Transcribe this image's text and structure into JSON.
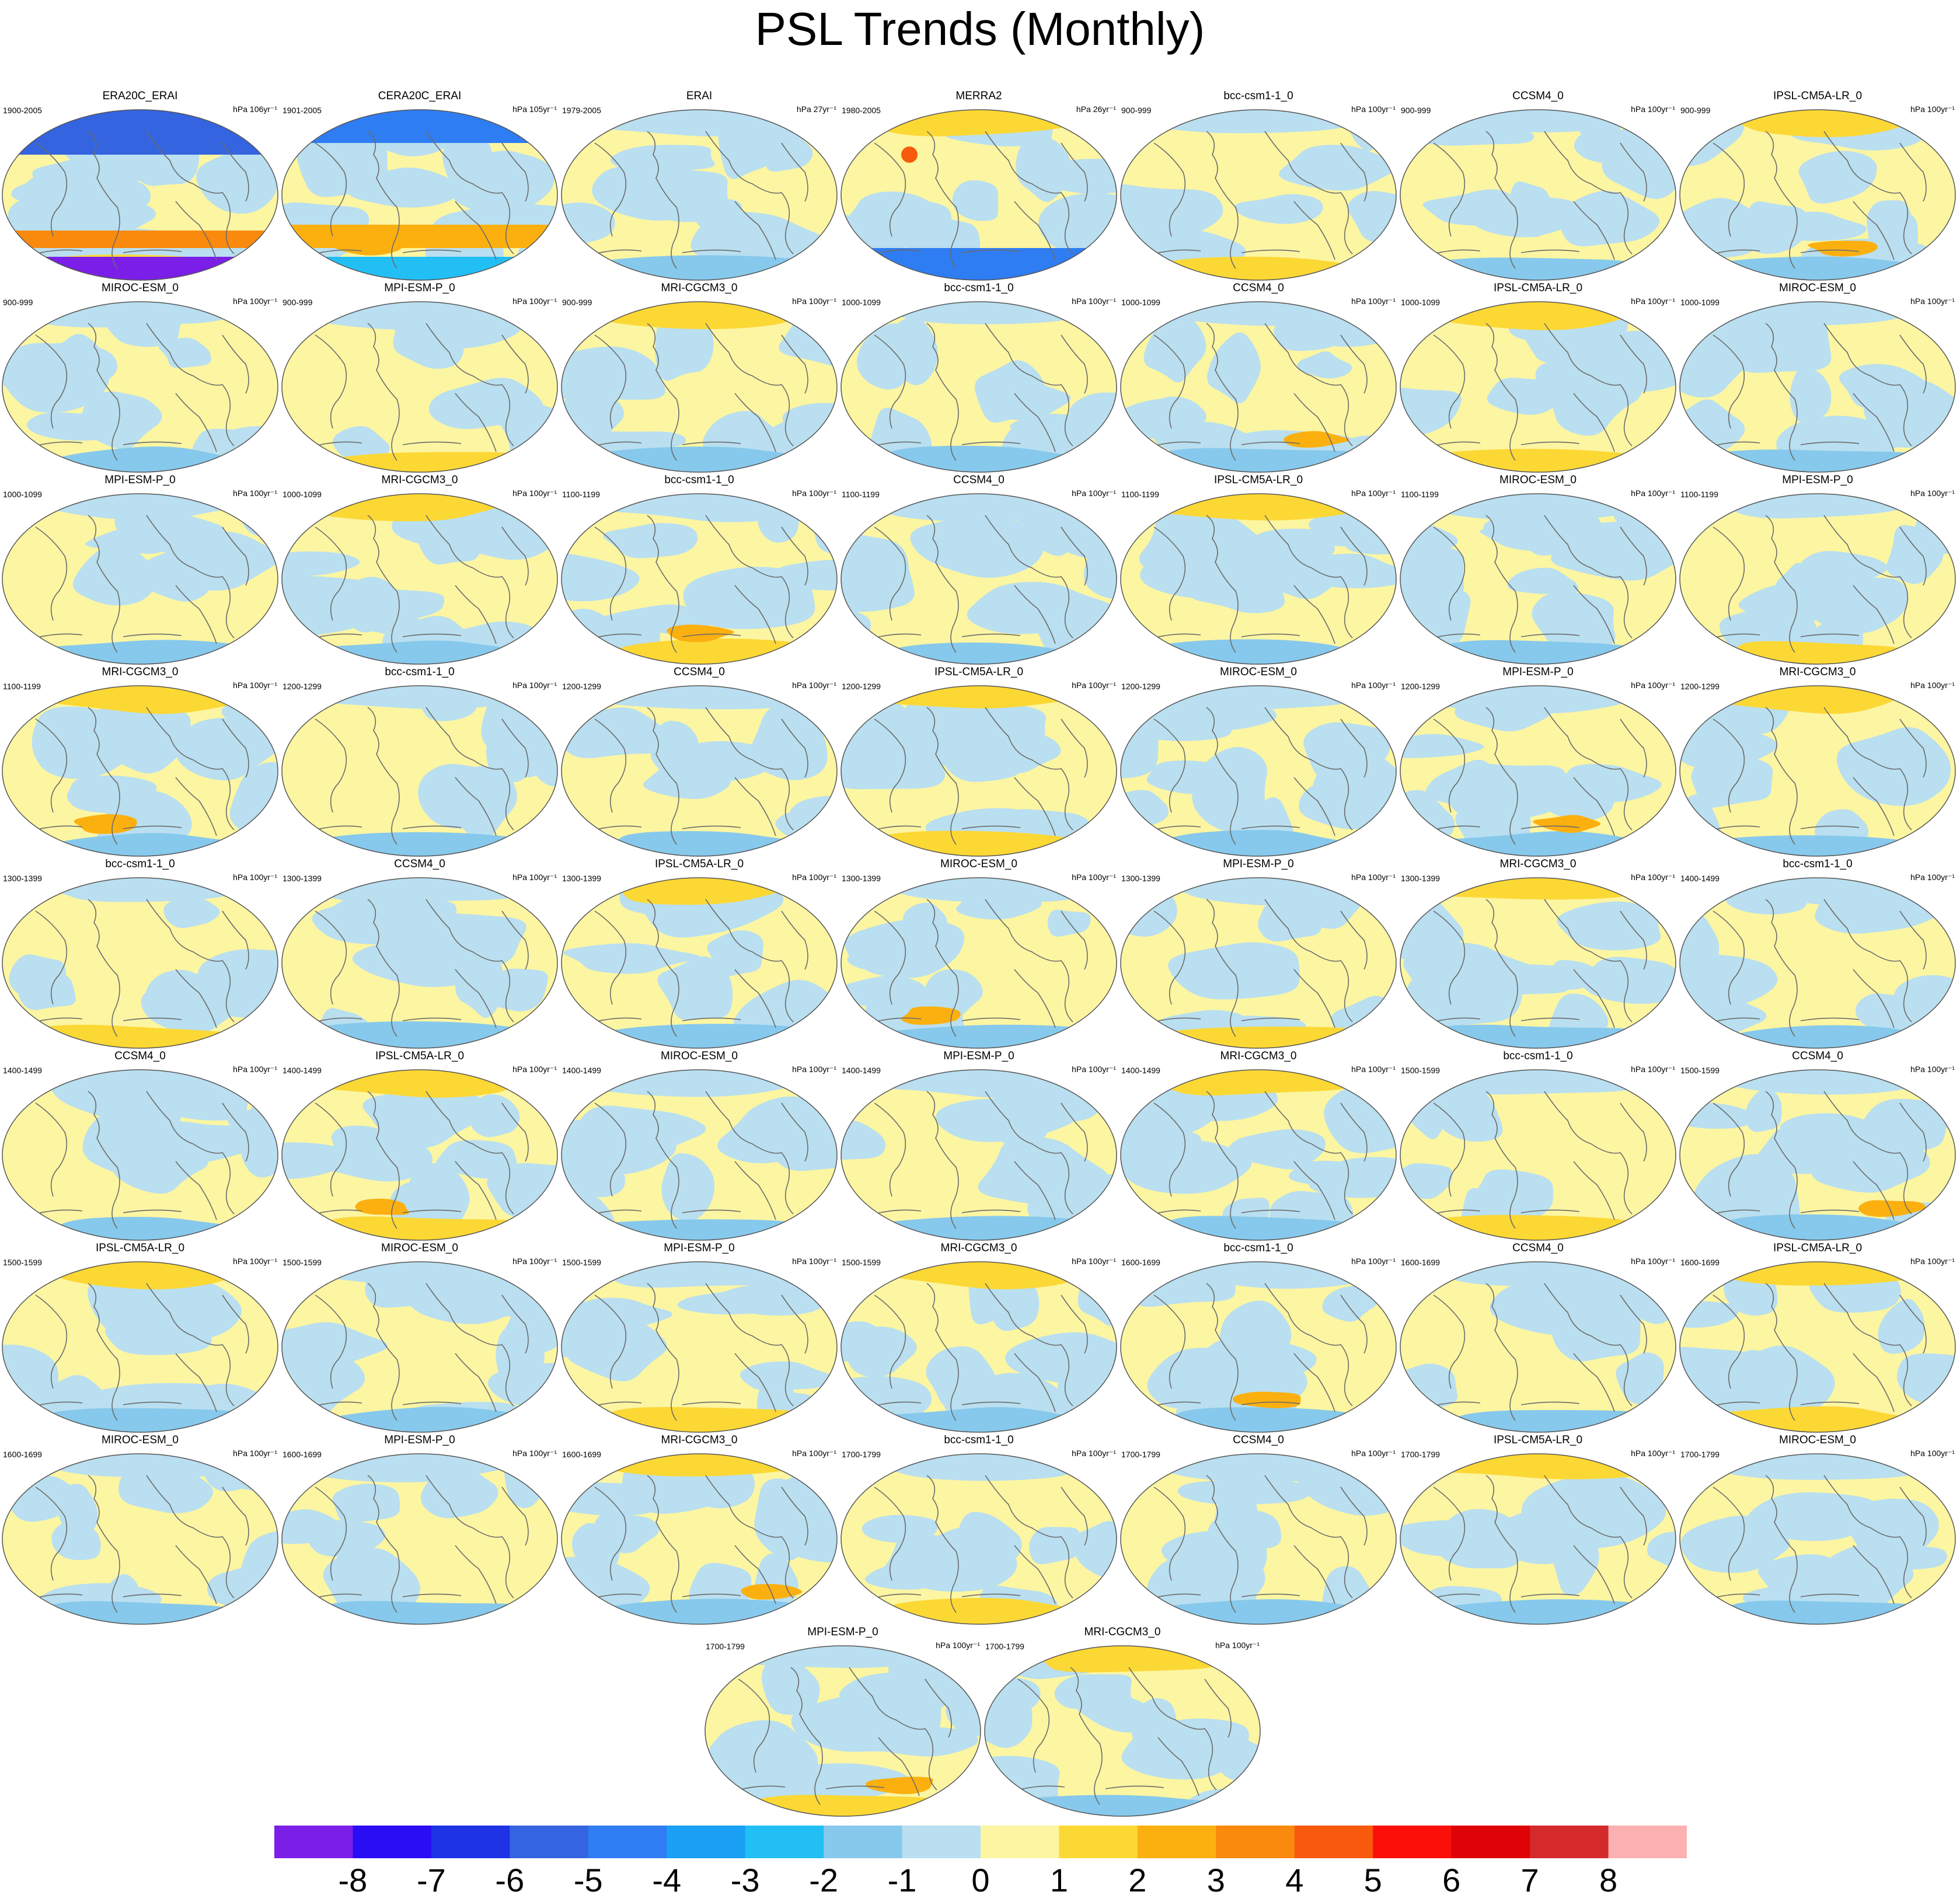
{
  "title": "PSL Trends (Monthly)",
  "chart_data": {
    "type": "heatmap",
    "title": "PSL Trends (Monthly)",
    "variable": "PSL",
    "colorbar": {
      "levels": [
        "-8",
        "-7",
        "-6",
        "-5",
        "-4",
        "-3",
        "-2",
        "-1",
        "0",
        "1",
        "2",
        "3",
        "4",
        "5",
        "6",
        "7",
        "8"
      ],
      "colors": [
        "#7b1fe8",
        "#2a0cf5",
        "#1e32e6",
        "#3464e0",
        "#2f7df2",
        "#1aa0f5",
        "#22bff5",
        "#87c9ec",
        "#b9dff0",
        "#fcf5a2",
        "#fcd835",
        "#fbb010",
        "#f98a0e",
        "#f75a0c",
        "#fb1009",
        "#dd0306",
        "#d42a2c",
        "#fbb1b1"
      ]
    },
    "panels": [
      {
        "name": "ERA20C_ERAI",
        "period": "1900-2005",
        "units": "hPa 106yr⁻¹"
      },
      {
        "name": "CERA20C_ERAI",
        "period": "1901-2005",
        "units": "hPa 105yr⁻¹"
      },
      {
        "name": "ERAI",
        "period": "1979-2005",
        "units": "hPa 27yr⁻¹"
      },
      {
        "name": "MERRA2",
        "period": "1980-2005",
        "units": "hPa 26yr⁻¹"
      },
      {
        "name": "bcc-csm1-1_0",
        "period": "900-999",
        "units": "hPa 100yr⁻¹"
      },
      {
        "name": "CCSM4_0",
        "period": "900-999",
        "units": "hPa 100yr⁻¹"
      },
      {
        "name": "IPSL-CM5A-LR_0",
        "period": "900-999",
        "units": "hPa 100yr⁻¹"
      },
      {
        "name": "MIROC-ESM_0",
        "period": "900-999",
        "units": "hPa 100yr⁻¹"
      },
      {
        "name": "MPI-ESM-P_0",
        "period": "900-999",
        "units": "hPa 100yr⁻¹"
      },
      {
        "name": "MRI-CGCM3_0",
        "period": "900-999",
        "units": "hPa 100yr⁻¹"
      },
      {
        "name": "bcc-csm1-1_0",
        "period": "1000-1099",
        "units": "hPa 100yr⁻¹"
      },
      {
        "name": "CCSM4_0",
        "period": "1000-1099",
        "units": "hPa 100yr⁻¹"
      },
      {
        "name": "IPSL-CM5A-LR_0",
        "period": "1000-1099",
        "units": "hPa 100yr⁻¹"
      },
      {
        "name": "MIROC-ESM_0",
        "period": "1000-1099",
        "units": "hPa 100yr⁻¹"
      },
      {
        "name": "MPI-ESM-P_0",
        "period": "1000-1099",
        "units": "hPa 100yr⁻¹"
      },
      {
        "name": "MRI-CGCM3_0",
        "period": "1000-1099",
        "units": "hPa 100yr⁻¹"
      },
      {
        "name": "bcc-csm1-1_0",
        "period": "1100-1199",
        "units": "hPa 100yr⁻¹"
      },
      {
        "name": "CCSM4_0",
        "period": "1100-1199",
        "units": "hPa 100yr⁻¹"
      },
      {
        "name": "IPSL-CM5A-LR_0",
        "period": "1100-1199",
        "units": "hPa 100yr⁻¹"
      },
      {
        "name": "MIROC-ESM_0",
        "period": "1100-1199",
        "units": "hPa 100yr⁻¹"
      },
      {
        "name": "MPI-ESM-P_0",
        "period": "1100-1199",
        "units": "hPa 100yr⁻¹"
      },
      {
        "name": "MRI-CGCM3_0",
        "period": "1100-1199",
        "units": "hPa 100yr⁻¹"
      },
      {
        "name": "bcc-csm1-1_0",
        "period": "1200-1299",
        "units": "hPa 100yr⁻¹"
      },
      {
        "name": "CCSM4_0",
        "period": "1200-1299",
        "units": "hPa 100yr⁻¹"
      },
      {
        "name": "IPSL-CM5A-LR_0",
        "period": "1200-1299",
        "units": "hPa 100yr⁻¹"
      },
      {
        "name": "MIROC-ESM_0",
        "period": "1200-1299",
        "units": "hPa 100yr⁻¹"
      },
      {
        "name": "MPI-ESM-P_0",
        "period": "1200-1299",
        "units": "hPa 100yr⁻¹"
      },
      {
        "name": "MRI-CGCM3_0",
        "period": "1200-1299",
        "units": "hPa 100yr⁻¹"
      },
      {
        "name": "bcc-csm1-1_0",
        "period": "1300-1399",
        "units": "hPa 100yr⁻¹"
      },
      {
        "name": "CCSM4_0",
        "period": "1300-1399",
        "units": "hPa 100yr⁻¹"
      },
      {
        "name": "IPSL-CM5A-LR_0",
        "period": "1300-1399",
        "units": "hPa 100yr⁻¹"
      },
      {
        "name": "MIROC-ESM_0",
        "period": "1300-1399",
        "units": "hPa 100yr⁻¹"
      },
      {
        "name": "MPI-ESM-P_0",
        "period": "1300-1399",
        "units": "hPa 100yr⁻¹"
      },
      {
        "name": "MRI-CGCM3_0",
        "period": "1300-1399",
        "units": "hPa 100yr⁻¹"
      },
      {
        "name": "bcc-csm1-1_0",
        "period": "1400-1499",
        "units": "hPa 100yr⁻¹"
      },
      {
        "name": "CCSM4_0",
        "period": "1400-1499",
        "units": "hPa 100yr⁻¹"
      },
      {
        "name": "IPSL-CM5A-LR_0",
        "period": "1400-1499",
        "units": "hPa 100yr⁻¹"
      },
      {
        "name": "MIROC-ESM_0",
        "period": "1400-1499",
        "units": "hPa 100yr⁻¹"
      },
      {
        "name": "MPI-ESM-P_0",
        "period": "1400-1499",
        "units": "hPa 100yr⁻¹"
      },
      {
        "name": "MRI-CGCM3_0",
        "period": "1400-1499",
        "units": "hPa 100yr⁻¹"
      },
      {
        "name": "bcc-csm1-1_0",
        "period": "1500-1599",
        "units": "hPa 100yr⁻¹"
      },
      {
        "name": "CCSM4_0",
        "period": "1500-1599",
        "units": "hPa 100yr⁻¹"
      },
      {
        "name": "IPSL-CM5A-LR_0",
        "period": "1500-1599",
        "units": "hPa 100yr⁻¹"
      },
      {
        "name": "MIROC-ESM_0",
        "period": "1500-1599",
        "units": "hPa 100yr⁻¹"
      },
      {
        "name": "MPI-ESM-P_0",
        "period": "1500-1599",
        "units": "hPa 100yr⁻¹"
      },
      {
        "name": "MRI-CGCM3_0",
        "period": "1500-1599",
        "units": "hPa 100yr⁻¹"
      },
      {
        "name": "bcc-csm1-1_0",
        "period": "1600-1699",
        "units": "hPa 100yr⁻¹"
      },
      {
        "name": "CCSM4_0",
        "period": "1600-1699",
        "units": "hPa 100yr⁻¹"
      },
      {
        "name": "IPSL-CM5A-LR_0",
        "period": "1600-1699",
        "units": "hPa 100yr⁻¹"
      },
      {
        "name": "MIROC-ESM_0",
        "period": "1600-1699",
        "units": "hPa 100yr⁻¹"
      },
      {
        "name": "MPI-ESM-P_0",
        "period": "1600-1699",
        "units": "hPa 100yr⁻¹"
      },
      {
        "name": "MRI-CGCM3_0",
        "period": "1600-1699",
        "units": "hPa 100yr⁻¹"
      },
      {
        "name": "bcc-csm1-1_0",
        "period": "1700-1799",
        "units": "hPa 100yr⁻¹"
      },
      {
        "name": "CCSM4_0",
        "period": "1700-1799",
        "units": "hPa 100yr⁻¹"
      },
      {
        "name": "IPSL-CM5A-LR_0",
        "period": "1700-1799",
        "units": "hPa 100yr⁻¹"
      },
      {
        "name": "MIROC-ESM_0",
        "period": "1700-1799",
        "units": "hPa 100yr⁻¹"
      },
      {
        "name": "MPI-ESM-P_0",
        "period": "1700-1799",
        "units": "hPa 100yr⁻¹"
      },
      {
        "name": "MRI-CGCM3_0",
        "period": "1700-1799",
        "units": "hPa 100yr⁻¹"
      }
    ]
  }
}
